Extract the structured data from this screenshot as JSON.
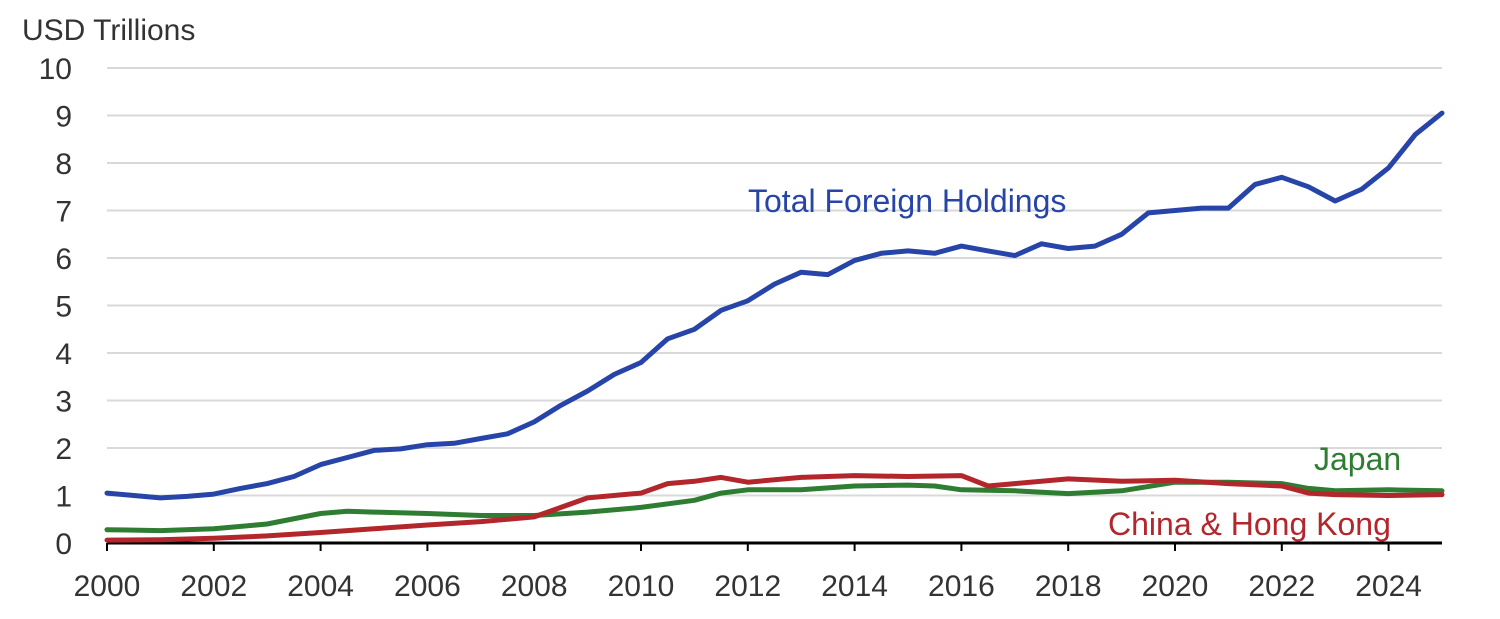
{
  "chart_data": {
    "type": "line",
    "title": "",
    "ylabel": "USD Trillions",
    "xlabel": "",
    "ylim": [
      0,
      10
    ],
    "xlim": [
      2000,
      2025
    ],
    "yticks": [
      "0",
      "1",
      "2",
      "3",
      "4",
      "5",
      "6",
      "7",
      "8",
      "9",
      "10"
    ],
    "xticks": [
      "2000",
      "2002",
      "2004",
      "2006",
      "2008",
      "2010",
      "2012",
      "2014",
      "2016",
      "2018",
      "2020",
      "2022",
      "2024"
    ],
    "grid": "horizontal",
    "legend": "direct labels",
    "colors": {
      "total": "#2745A8",
      "japan": "#2E7D32",
      "china": "#B3262B",
      "grid": "#d9d9d9",
      "axis": "#000000"
    },
    "series": [
      {
        "key": "total",
        "name": "Total Foreign Holdings",
        "x": [
          2000,
          2000.5,
          2001,
          2001.5,
          2002,
          2002.5,
          2003,
          2003.5,
          2004,
          2004.5,
          2005,
          2005.5,
          2006,
          2006.5,
          2007,
          2007.5,
          2008,
          2008.5,
          2009,
          2009.5,
          2010,
          2010.5,
          2011,
          2011.5,
          2012,
          2012.5,
          2013,
          2013.5,
          2014,
          2014.5,
          2015,
          2015.5,
          2016,
          2016.5,
          2017,
          2017.5,
          2018,
          2018.5,
          2019,
          2019.5,
          2020,
          2020.5,
          2021,
          2021.5,
          2022,
          2022.5,
          2023,
          2023.5,
          2024,
          2024.5,
          2025
        ],
        "values": [
          1.05,
          1.0,
          0.95,
          0.98,
          1.03,
          1.15,
          1.25,
          1.4,
          1.65,
          1.8,
          1.95,
          1.98,
          2.07,
          2.1,
          2.2,
          2.3,
          2.55,
          2.9,
          3.2,
          3.55,
          3.8,
          4.3,
          4.5,
          4.9,
          5.1,
          5.45,
          5.7,
          5.65,
          5.95,
          6.1,
          6.15,
          6.1,
          6.25,
          6.15,
          6.05,
          6.3,
          6.2,
          6.25,
          6.5,
          6.95,
          7.0,
          7.05,
          7.05,
          7.55,
          7.7,
          7.5,
          7.2,
          7.45,
          7.9,
          8.6,
          9.05
        ]
      },
      {
        "key": "japan",
        "name": "Japan",
        "x": [
          2000,
          2001,
          2002,
          2003,
          2004,
          2004.5,
          2005,
          2006,
          2007,
          2008,
          2009,
          2010,
          2011,
          2011.5,
          2012,
          2013,
          2014,
          2015,
          2015.5,
          2016,
          2017,
          2018,
          2019,
          2020,
          2021,
          2022,
          2022.5,
          2023,
          2024,
          2025
        ],
        "values": [
          0.28,
          0.26,
          0.3,
          0.4,
          0.62,
          0.67,
          0.65,
          0.62,
          0.58,
          0.58,
          0.65,
          0.75,
          0.9,
          1.05,
          1.12,
          1.12,
          1.2,
          1.22,
          1.2,
          1.12,
          1.1,
          1.04,
          1.1,
          1.28,
          1.28,
          1.25,
          1.15,
          1.1,
          1.12,
          1.1
        ]
      },
      {
        "key": "china",
        "name": "China & Hong Kong",
        "x": [
          2000,
          2001,
          2002,
          2003,
          2004,
          2005,
          2006,
          2007,
          2008,
          2008.5,
          2009,
          2010,
          2010.5,
          2011,
          2011.5,
          2012,
          2013,
          2014,
          2015,
          2016,
          2016.5,
          2017,
          2018,
          2019,
          2020,
          2021,
          2022,
          2022.5,
          2023,
          2024,
          2025
        ],
        "values": [
          0.06,
          0.07,
          0.1,
          0.15,
          0.22,
          0.3,
          0.38,
          0.45,
          0.55,
          0.75,
          0.95,
          1.05,
          1.25,
          1.3,
          1.38,
          1.28,
          1.38,
          1.42,
          1.4,
          1.42,
          1.2,
          1.25,
          1.35,
          1.3,
          1.32,
          1.25,
          1.2,
          1.05,
          1.02,
          1.0,
          1.02
        ]
      }
    ]
  }
}
